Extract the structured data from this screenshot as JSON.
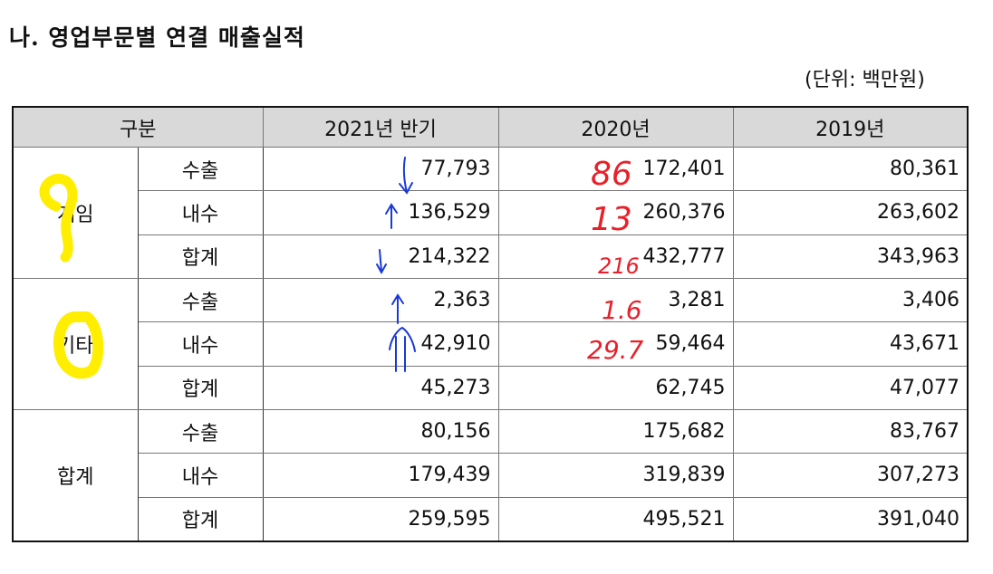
{
  "title": "나. 영업부문별 연결 매출실적",
  "unit": "(단위: 백만원)",
  "table": {
    "headers": [
      "구분",
      "2021년 반기",
      "2020년",
      "2019년"
    ],
    "groups": [
      {
        "name": "게임",
        "rows": [
          {
            "label": "수출",
            "values": [
              "77,793",
              "172,401",
              "80,361"
            ]
          },
          {
            "label": "내수",
            "values": [
              "136,529",
              "260,376",
              "263,602"
            ]
          },
          {
            "label": "합계",
            "values": [
              "214,322",
              "432,777",
              "343,963"
            ]
          }
        ]
      },
      {
        "name": "기타",
        "rows": [
          {
            "label": "수출",
            "values": [
              "2,363",
              "3,281",
              "3,406"
            ]
          },
          {
            "label": "내수",
            "values": [
              "42,910",
              "59,464",
              "43,671"
            ]
          },
          {
            "label": "합계",
            "values": [
              "45,273",
              "62,745",
              "47,077"
            ]
          }
        ]
      },
      {
        "name": "합계",
        "rows": [
          {
            "label": "수출",
            "values": [
              "80,156",
              "175,682",
              "83,767"
            ]
          },
          {
            "label": "내수",
            "values": [
              "179,439",
              "319,839",
              "307,273"
            ]
          },
          {
            "label": "합계",
            "values": [
              "259,595",
              "495,521",
              "391,040"
            ]
          }
        ]
      }
    ]
  },
  "annotations": {
    "red_notes": [
      "86",
      "13",
      "216",
      "1.6",
      "29.7"
    ],
    "colors": {
      "red": "#e8202a",
      "blue": "#1a3ad6",
      "yellow": "#ffee00"
    }
  }
}
